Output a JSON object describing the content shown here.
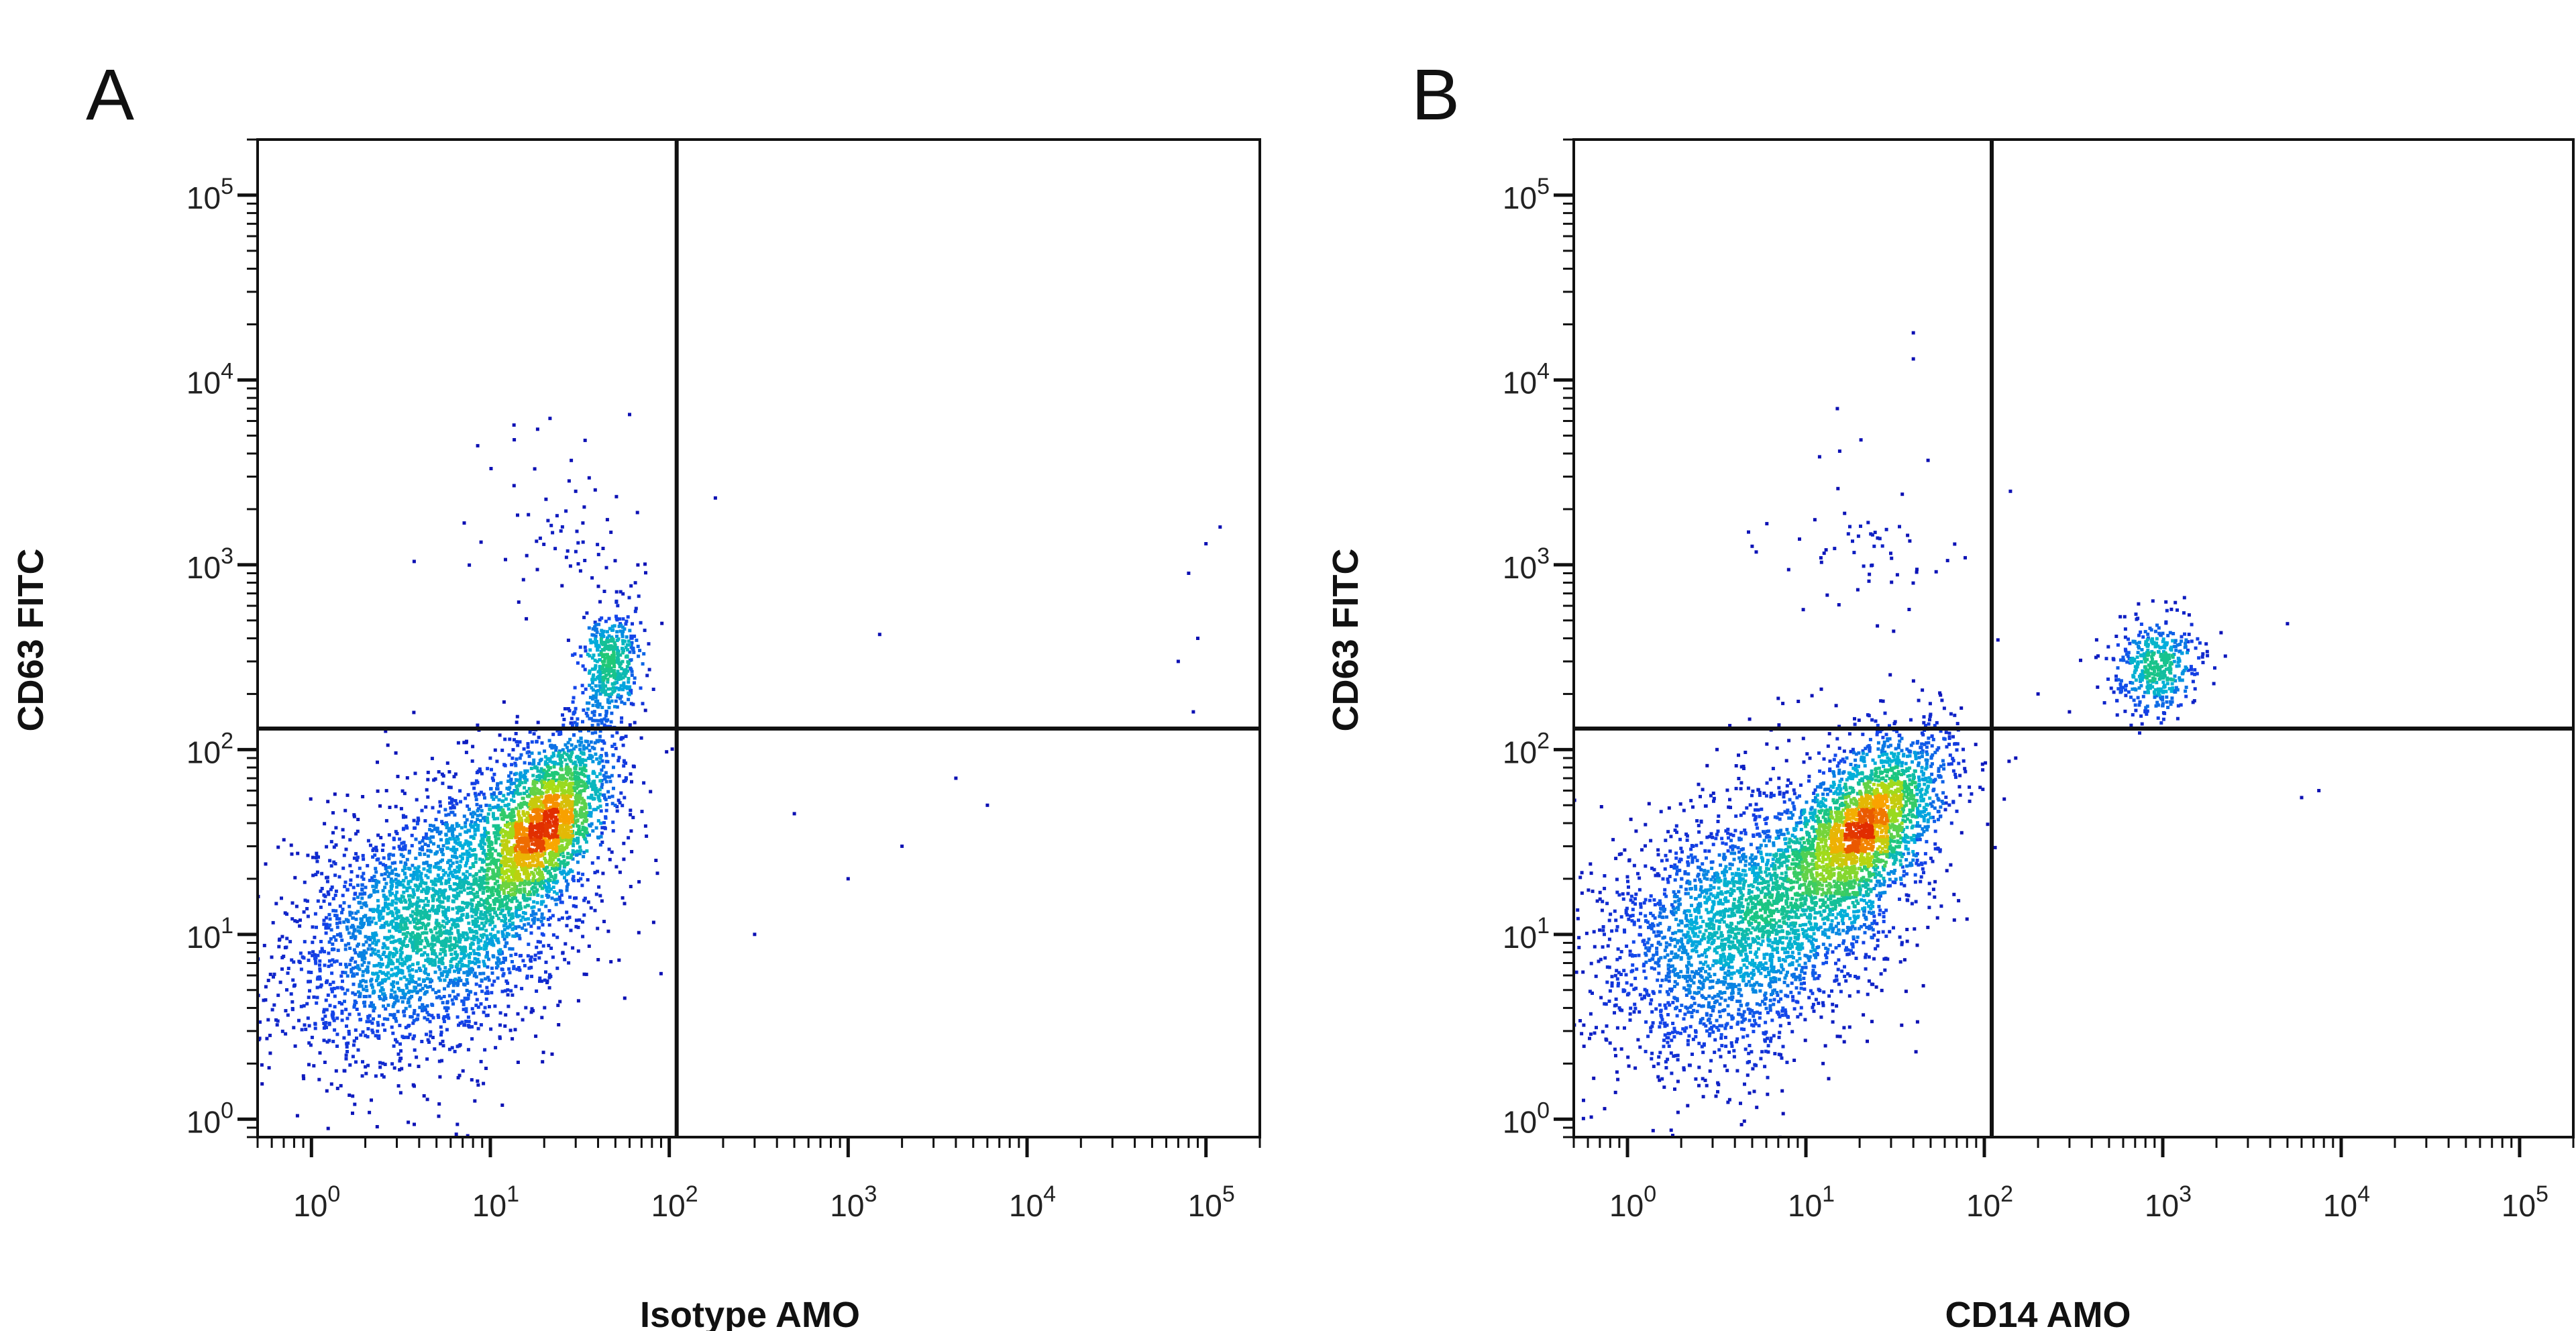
{
  "chart_data": [
    {
      "panel_label": "A",
      "type": "scatter",
      "subtype": "flow-cytometry density dot plot",
      "xlabel": "Isotype AMO",
      "ylabel": "CD63 FITC",
      "x_scale": "log",
      "y_scale": "log",
      "xlim": [
        0.5,
        200000
      ],
      "ylim": [
        0.8,
        200000
      ],
      "x_ticks": [
        {
          "value": 1,
          "base": "10",
          "exp": "0"
        },
        {
          "value": 10,
          "base": "10",
          "exp": "1"
        },
        {
          "value": 100,
          "base": "10",
          "exp": "2"
        },
        {
          "value": 1000,
          "base": "10",
          "exp": "3"
        },
        {
          "value": 10000,
          "base": "10",
          "exp": "4"
        },
        {
          "value": 100000,
          "base": "10",
          "exp": "5"
        }
      ],
      "y_ticks": [
        {
          "value": 1,
          "base": "10",
          "exp": "0"
        },
        {
          "value": 10,
          "base": "10",
          "exp": "1"
        },
        {
          "value": 100,
          "base": "10",
          "exp": "2"
        },
        {
          "value": 1000,
          "base": "10",
          "exp": "3"
        },
        {
          "value": 10000,
          "base": "10",
          "exp": "4"
        },
        {
          "value": 100000,
          "base": "10",
          "exp": "5"
        }
      ],
      "quadrant_gate": {
        "x": 110,
        "y": 130
      },
      "populations": [
        {
          "cx": 5,
          "cy": 12,
          "sx_log": 0.42,
          "sy_log": 0.38,
          "rho": 0.35,
          "n": 3000
        },
        {
          "cx": 20,
          "cy": 40,
          "sx_log": 0.2,
          "sy_log": 0.25,
          "rho": 0.55,
          "n": 2000
        },
        {
          "cx": 48,
          "cy": 300,
          "sx_log": 0.08,
          "sy_log": 0.15,
          "rho": 0.2,
          "n": 420
        },
        {
          "cx": 25,
          "cy": 1500,
          "sx_log": 0.3,
          "sy_log": 0.25,
          "rho": 0.0,
          "n": 70
        }
      ],
      "outliers": [
        [
          1500,
          420
        ],
        [
          4000,
          70
        ],
        [
          6000,
          50
        ],
        [
          2000,
          30
        ],
        [
          1000,
          20
        ],
        [
          300,
          10
        ],
        [
          500,
          45
        ],
        [
          80000,
          900
        ],
        [
          100000,
          1300
        ],
        [
          120000,
          1600
        ],
        [
          90000,
          400
        ],
        [
          70000,
          300
        ],
        [
          85000,
          160
        ],
        [
          60,
          6500
        ],
        [
          30,
          2500
        ]
      ]
    },
    {
      "panel_label": "B",
      "type": "scatter",
      "subtype": "flow-cytometry density dot plot",
      "xlabel": "CD14 AMO",
      "ylabel": "CD63 FITC",
      "x_scale": "log",
      "y_scale": "log",
      "xlim": [
        0.5,
        200000
      ],
      "ylim": [
        0.8,
        200000
      ],
      "x_ticks": [
        {
          "value": 1,
          "base": "10",
          "exp": "0"
        },
        {
          "value": 10,
          "base": "10",
          "exp": "1"
        },
        {
          "value": 100,
          "base": "10",
          "exp": "2"
        },
        {
          "value": 1000,
          "base": "10",
          "exp": "3"
        },
        {
          "value": 10000,
          "base": "10",
          "exp": "4"
        },
        {
          "value": 100000,
          "base": "10",
          "exp": "5"
        }
      ],
      "y_ticks": [
        {
          "value": 1,
          "base": "10",
          "exp": "0"
        },
        {
          "value": 10,
          "base": "10",
          "exp": "1"
        },
        {
          "value": 100,
          "base": "10",
          "exp": "2"
        },
        {
          "value": 1000,
          "base": "10",
          "exp": "3"
        },
        {
          "value": 10000,
          "base": "10",
          "exp": "4"
        },
        {
          "value": 100000,
          "base": "10",
          "exp": "5"
        }
      ],
      "quadrant_gate": {
        "x": 110,
        "y": 130
      },
      "populations": [
        {
          "cx": 5,
          "cy": 12,
          "sx_log": 0.42,
          "sy_log": 0.38,
          "rho": 0.35,
          "n": 3000
        },
        {
          "cx": 22,
          "cy": 40,
          "sx_log": 0.22,
          "sy_log": 0.25,
          "rho": 0.55,
          "n": 2000
        },
        {
          "cx": 900,
          "cy": 280,
          "sx_log": 0.13,
          "sy_log": 0.14,
          "rho": 0.1,
          "n": 450
        },
        {
          "cx": 20,
          "cy": 1400,
          "sx_log": 0.25,
          "sy_log": 0.22,
          "rho": 0.0,
          "n": 60
        }
      ],
      "outliers": [
        [
          5000,
          480
        ],
        [
          6000,
          55
        ],
        [
          7500,
          60
        ],
        [
          200,
          200
        ],
        [
          300,
          160
        ],
        [
          150,
          90
        ],
        [
          140,
          2500
        ],
        [
          40,
          18000
        ],
        [
          40,
          13000
        ],
        [
          15,
          7000
        ]
      ]
    }
  ]
}
